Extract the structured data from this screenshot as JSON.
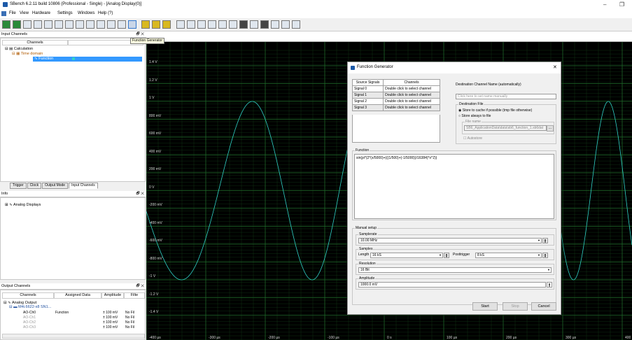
{
  "window": {
    "title": "SBench 6.2.11 build 10806 (Professional - Single) - [Analog Display(0)]",
    "minimize": "–",
    "restore": "❐"
  },
  "menu": [
    "File",
    "View",
    "Hardware",
    "Settings",
    "Windows",
    "Help (?)"
  ],
  "toolbar": {
    "tooltip": "Function Generator"
  },
  "input_channels": {
    "title": "Input Channels",
    "column": "Channels",
    "tree": {
      "calculation": "Calculation",
      "time_domain": "Time domain",
      "function": "Function"
    },
    "tabs": [
      "Trigger",
      "Clock",
      "Output Mode",
      "Input Channels"
    ]
  },
  "info": {
    "title": "Info",
    "item": "Analog Displays"
  },
  "output_channels": {
    "title": "Output Channels",
    "columns": [
      "Channels",
      "Assigned Data",
      "Amplitude",
      "Filte"
    ],
    "analog_output": "Analog Output",
    "card": "M4i.6622-x8 SN1...",
    "rows": [
      {
        "channel": "AO-Ch0",
        "data": "Function",
        "amplitude": "± 100 mV",
        "filter": "No Fil"
      },
      {
        "channel": "AO-Ch1",
        "data": "",
        "amplitude": "± 100 mV",
        "filter": "No Fil"
      },
      {
        "channel": "AO-Ch2",
        "data": "",
        "amplitude": "± 100 mV",
        "filter": "No Fil"
      },
      {
        "channel": "AO-Ch3",
        "data": "",
        "amplitude": "± 100 mV",
        "filter": "No Fil"
      }
    ]
  },
  "scope": {
    "y_labels": [
      "1.4 V",
      "1.2 V",
      "1 V",
      "800 mV",
      "600 mV",
      "400 mV",
      "200 mV",
      "0 V",
      "-200 mV",
      "-400 mV",
      "-600 mV",
      "-800 mV",
      "-1 V",
      "-1.2 V",
      "-1.4 V"
    ],
    "x_labels": [
      "-400 µs",
      "-300 µs",
      "-200 µs",
      "-100 µs",
      "0 s",
      "100 µs",
      "200 µs",
      "300 µs",
      "400 µs"
    ],
    "trace_color": "#2fd1c6",
    "grid_color": "#1f6b2a"
  },
  "dialog": {
    "title": "Function Generator",
    "close": "✕",
    "sig_headers": [
      "Source Signals",
      "Channels"
    ],
    "signals": [
      {
        "name": "Signal 0",
        "channel": "Double click to select channel"
      },
      {
        "name": "Signal 1",
        "channel": "Double click to select channel"
      },
      {
        "name": "Signal 2",
        "channel": "Double click to select channel"
      },
      {
        "name": "Signal 3",
        "channel": "Double click to select channel"
      }
    ],
    "dest_name_label": "Destination Channel Name (automatically)",
    "dest_name_placeholder": "Click here to set name manually",
    "dest_file_label": "Destination File",
    "radio_cache": "Store to cache if possible (tmp file otherwise)",
    "radio_file": "Store always to file",
    "file_name_label": "File name",
    "file_name_value": "SB6_ApplicationData\\data\\sb6_function_1.sb6dat",
    "browse": "...",
    "autostore": "Autostore",
    "function_label": "Function",
    "function_value": "sin(pi*(2*(x/5000)+(((1/500)+(-1/5000))/16384)*x^2))",
    "manual_setup": "Manual setup",
    "samplerate_label": "Samplerate",
    "samplerate_value": "10.00 MHz",
    "samples_label": "Samples",
    "length_label": "Length",
    "length_value": "16 kS",
    "posttrigger_label": "Posttrigger",
    "posttrigger_value": "8 kS",
    "resolution_label": "Resolution",
    "resolution_value": "16 Bit",
    "amplitude_label": "Amplitude",
    "amplitude_value": "1000.0 mV",
    "start": "Start",
    "stop": "Stop",
    "cancel": "Cancel"
  }
}
